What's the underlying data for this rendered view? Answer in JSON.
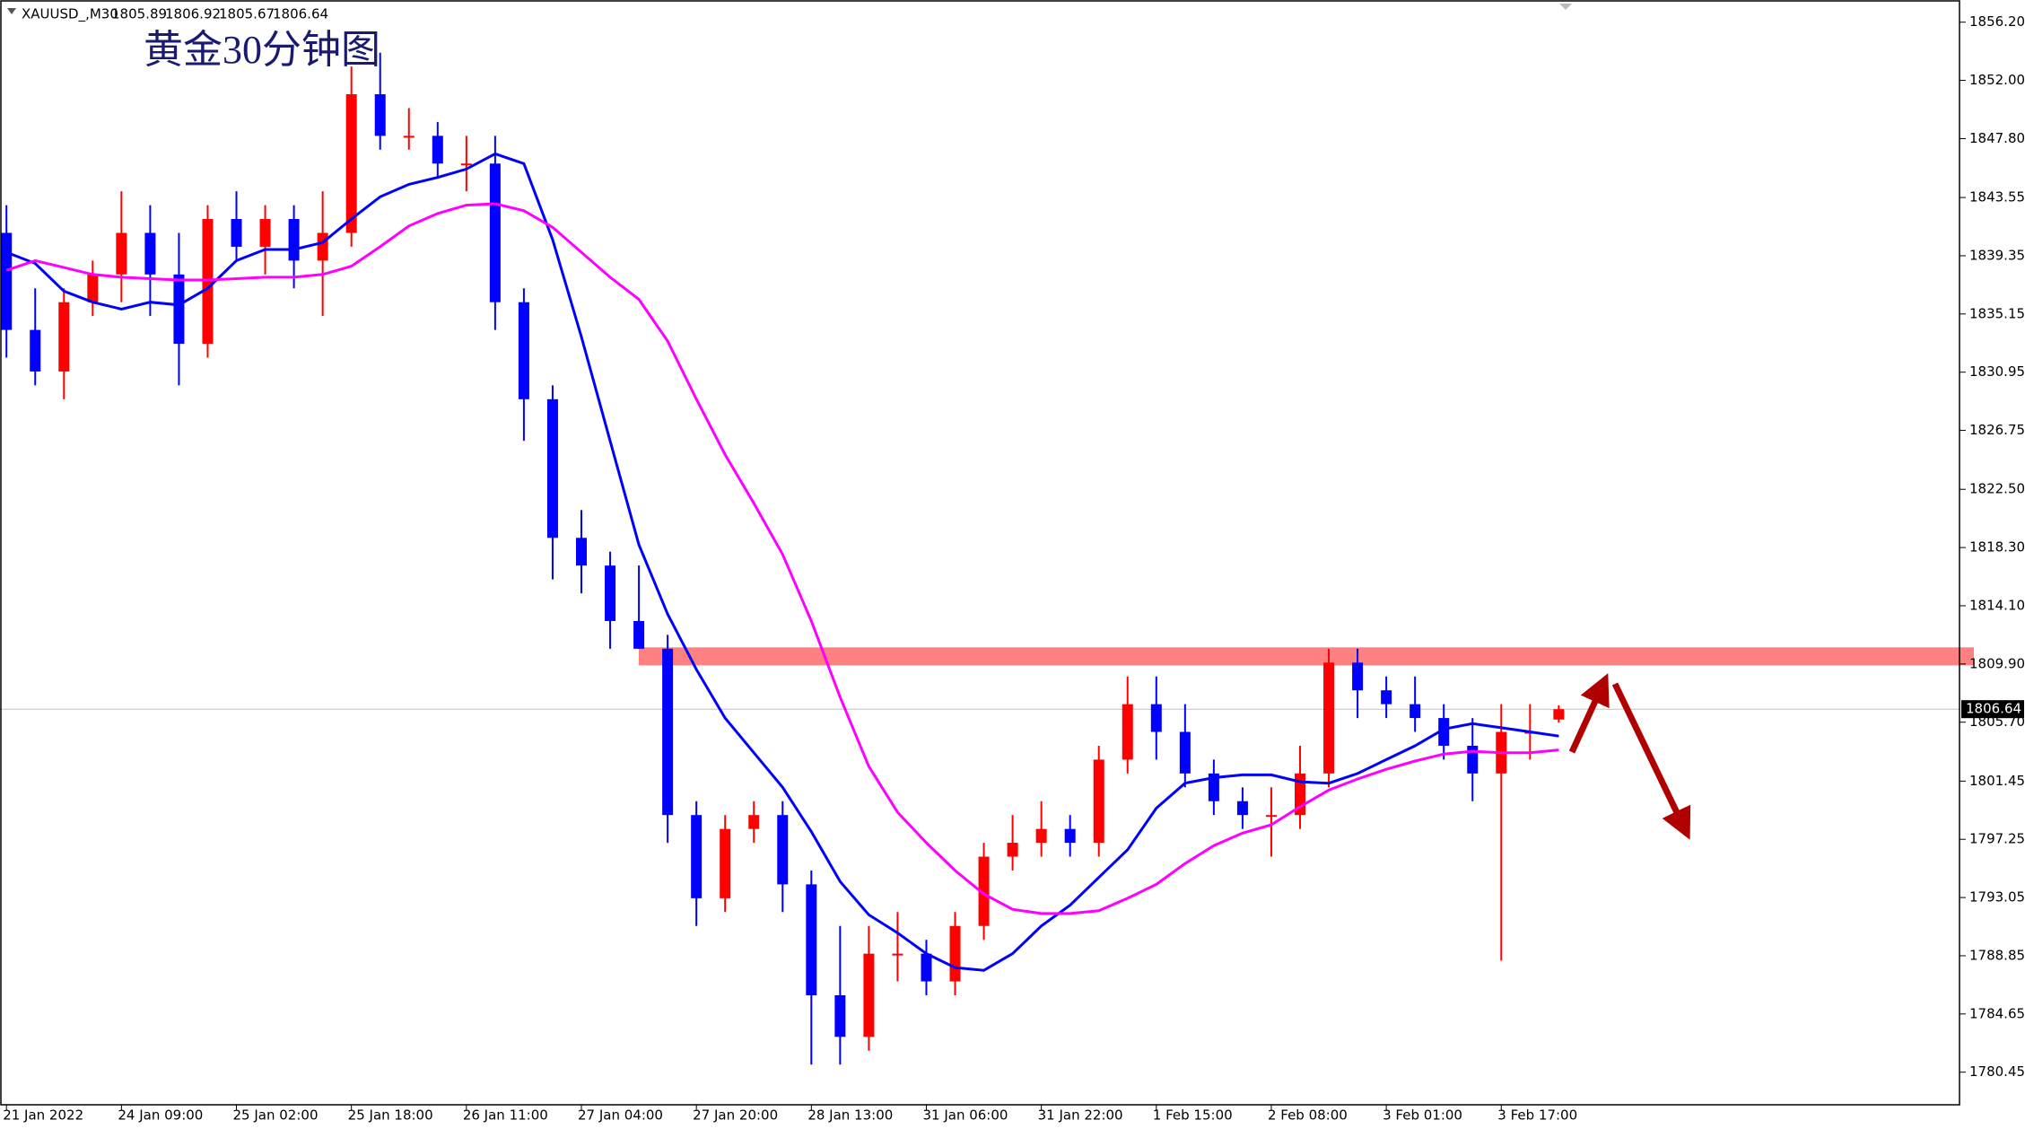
{
  "chart_data": {
    "type": "candlestick",
    "title": "黄金30分钟图",
    "symbol": "XAUUSD_,M30",
    "ohlc": [
      1805.89,
      1806.92,
      1805.67,
      1806.64
    ],
    "categories": [
      "21 Jan 2022",
      null,
      null,
      null,
      "24 Jan 09:00",
      null,
      null,
      null,
      "25 Jan 02:00",
      null,
      null,
      null,
      "25 Jan 18:00",
      null,
      null,
      null,
      "26 Jan 11:00",
      null,
      null,
      null,
      "27 Jan 04:00",
      null,
      null,
      null,
      "27 Jan 20:00",
      null,
      null,
      null,
      "28 Jan 13:00",
      null,
      null,
      null,
      "31 Jan 06:00",
      null,
      null,
      null,
      "31 Jan 22:00",
      null,
      null,
      null,
      "1 Feb 15:00",
      null,
      null,
      null,
      "2 Feb 08:00",
      null,
      null,
      null,
      "3 Feb 01:00",
      null,
      null,
      null,
      "3 Feb 17:00",
      null,
      null
    ],
    "open": [
      1841,
      1834,
      1831,
      1836,
      1838,
      1841,
      1838,
      1833,
      1842,
      1840,
      1842,
      1839,
      1841,
      1851,
      1848,
      1848,
      1846,
      1846,
      1836,
      1829,
      1819,
      1817,
      1813,
      1811,
      1799,
      1793,
      1798,
      1799,
      1794,
      1786,
      1783,
      1789,
      1789,
      1787,
      1791,
      1796,
      1797,
      1798,
      1797,
      1803,
      1807,
      1805,
      1802,
      1800,
      1799,
      1799,
      1802,
      1810,
      1808,
      1807,
      1806,
      1804,
      1802,
      1805,
      1805.89
    ],
    "high": [
      1843,
      1837,
      1837,
      1839,
      1844,
      1843,
      1841,
      1843,
      1844,
      1843,
      1843,
      1844,
      1853,
      1854,
      1850,
      1849,
      1848,
      1848,
      1837,
      1830,
      1821,
      1818,
      1817,
      1812,
      1800,
      1799,
      1800,
      1800,
      1795,
      1791,
      1791,
      1792,
      1790,
      1792,
      1797,
      1799,
      1800,
      1799,
      1804,
      1809,
      1809,
      1807,
      1803,
      1801,
      1801,
      1804,
      1811,
      1811,
      1809,
      1809,
      1807,
      1806,
      1807,
      1807,
      1806.92
    ],
    "low": [
      1832,
      1830,
      1829,
      1835,
      1836,
      1835,
      1830,
      1832,
      1839,
      1838,
      1837,
      1835,
      1840,
      1847,
      1847,
      1845,
      1844,
      1834,
      1826,
      1816,
      1815,
      1811,
      1811,
      1797,
      1791,
      1792,
      1797,
      1792,
      1781,
      1781,
      1782,
      1787,
      1786,
      1786,
      1790,
      1795,
      1796,
      1796,
      1796,
      1802,
      1803,
      1801,
      1799,
      1798,
      1796,
      1798,
      1801,
      1806,
      1806,
      1805,
      1803,
      1800,
      1788.5,
      1803,
      1805.67
    ],
    "close": [
      1834,
      1831,
      1836,
      1838,
      1841,
      1838,
      1833,
      1842,
      1840,
      1842,
      1839,
      1841,
      1851,
      1848,
      1848,
      1846,
      1846,
      1836,
      1829,
      1819,
      1817,
      1813,
      1811,
      1799,
      1793,
      1798,
      1799,
      1794,
      1786,
      1783,
      1789,
      1789,
      1787,
      1791,
      1796,
      1797,
      1798,
      1797,
      1803,
      1807,
      1805,
      1802,
      1800,
      1799,
      1799,
      1802,
      1810,
      1808,
      1807,
      1806,
      1804,
      1802,
      1805,
      1805,
      1806.64
    ],
    "up_color": "#ff0000",
    "down_color": "#0000ff",
    "lines": [
      {
        "color": "#0000ff",
        "values": [
          1839.6,
          1838.8,
          1836.8,
          1836,
          1835.5,
          1836,
          1835.8,
          1837,
          1839,
          1839.8,
          1839.8,
          1840.3,
          1842,
          1843.6,
          1844.5,
          1845,
          1845.6,
          1846.7,
          1846,
          1840.5,
          1833.5,
          1826,
          1818.5,
          1813.5,
          1809.5,
          1806,
          1803.5,
          1801,
          1797.8,
          1794.2,
          1791.8,
          1790.5,
          1789,
          1788,
          1787.8,
          1789,
          1791,
          1792.5,
          1794.5,
          1796.5,
          1799.5,
          1801.3,
          1801.7,
          1801.9,
          1801.9,
          1801.4,
          1801.3,
          1802,
          1803,
          1804,
          1805.2,
          1805.6,
          1805.3,
          1805,
          1804.7
        ]
      },
      {
        "color": "#ff00ff",
        "values": [
          1838.3,
          1839,
          1838.5,
          1838,
          1837.8,
          1837.7,
          1837.6,
          1837.6,
          1837.7,
          1837.8,
          1837.8,
          1838,
          1838.6,
          1840,
          1841.5,
          1842.4,
          1843,
          1843.1,
          1842.6,
          1841.4,
          1839.6,
          1837.8,
          1836.2,
          1833.2,
          1829,
          1825,
          1821.5,
          1817.8,
          1813,
          1807.5,
          1802.5,
          1799.2,
          1797,
          1795,
          1793.3,
          1792.2,
          1791.9,
          1791.9,
          1792.1,
          1793,
          1794,
          1795.5,
          1796.8,
          1797.7,
          1798.3,
          1799.6,
          1800.8,
          1801.6,
          1802.3,
          1802.9,
          1803.4,
          1803.6,
          1803.5,
          1803.5,
          1803.7
        ]
      }
    ],
    "last_price": 1806.64,
    "zone": {
      "low": 1809.8,
      "high": 1811.1,
      "color": "#ff8080"
    },
    "ylim": [
      1778.1,
      1857.8
    ],
    "yticks": [
      {
        "value": 1856.2,
        "label": "1856.20"
      },
      {
        "value": 1852,
        "label": "1852.00"
      },
      {
        "value": 1847.8,
        "label": "1847.80"
      },
      {
        "value": 1843.55,
        "label": "1843.55"
      },
      {
        "value": 1839.35,
        "label": "1839.35"
      },
      {
        "value": 1835.15,
        "label": "1835.15"
      },
      {
        "value": 1830.95,
        "label": "1830.95"
      },
      {
        "value": 1826.75,
        "label": "1826.75"
      },
      {
        "value": 1822.5,
        "label": "1822.50"
      },
      {
        "value": 1818.3,
        "label": "1818.30"
      },
      {
        "value": 1814.1,
        "label": "1814.10"
      },
      {
        "value": 1809.9,
        "label": "1809.90"
      },
      {
        "value": 1805.7,
        "label": "1805.70"
      },
      {
        "value": 1801.45,
        "label": "1801.45"
      },
      {
        "value": 1797.25,
        "label": "1797.25"
      },
      {
        "value": 1793.05,
        "label": "1793.05"
      },
      {
        "value": 1788.85,
        "label": "1788.85"
      },
      {
        "value": 1784.65,
        "label": "1784.65"
      },
      {
        "value": 1780.45,
        "label": "1780.45"
      }
    ]
  }
}
